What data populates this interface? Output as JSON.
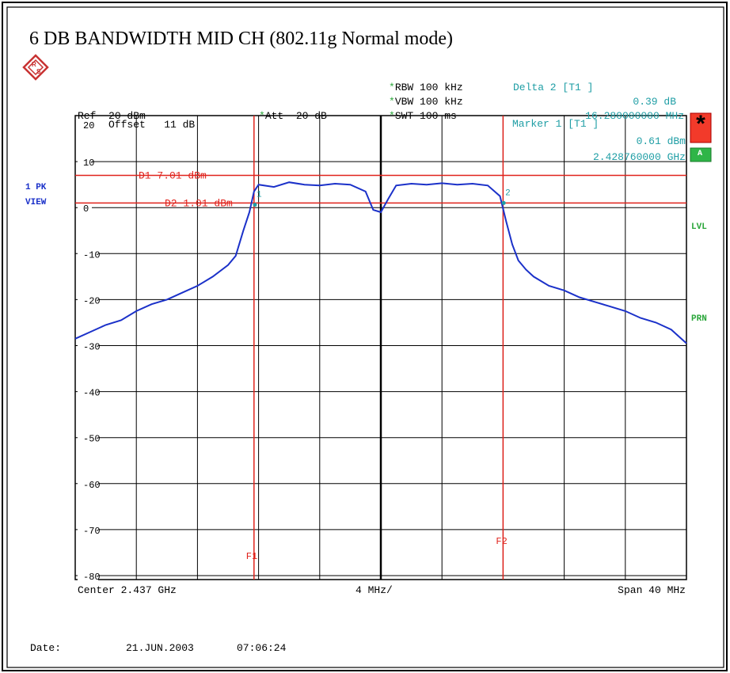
{
  "title": "6 DB BANDWIDTH MID CH (802.11g Normal mode)",
  "header": {
    "rbw_label": "RBW",
    "rbw_value": "100 kHz",
    "vbw_label": "VBW",
    "vbw_value": "100 kHz",
    "swt_label": "SWT",
    "swt_value": "100 ms",
    "ref_label": "Ref",
    "ref_value": "20 dBm",
    "att_label": "Att",
    "att_value": "20 dB",
    "star": "*",
    "delta_title": "Delta 2 [T1 ]",
    "delta_level": "0.39 dB",
    "delta_freq": "16.280000000 MHz"
  },
  "marker_box": {
    "title": "Marker 1 [T1 ]",
    "level": "0.61 dBm",
    "freq": "2.428760000 GHz"
  },
  "offset": {
    "label": "Offset",
    "value": "11 dB"
  },
  "side_left": {
    "trace_mode": "1 PK",
    "view": "VIEW"
  },
  "side_right": {
    "star_badge": "*",
    "a_badge": "A",
    "lvl": "LVL",
    "prn": "PRN"
  },
  "footer": {
    "center": "Center 2.437 GHz",
    "div": "4 MHz/",
    "span": "Span 40 MHz",
    "date_label": "Date:",
    "date_value": "21.JUN.2003",
    "time_value": "07:06:24"
  },
  "colors": {
    "trace": "#1b31c9",
    "lines": "#e0231c",
    "cyan": "#1f9ea5",
    "green": "#2aa63a"
  },
  "chart_data": {
    "type": "line",
    "xlim": [
      2.417,
      2.457
    ],
    "ylim": [
      -84,
      20
    ],
    "x_unit": "GHz",
    "y_unit": "dBm",
    "yticks": [
      20,
      10,
      0,
      -10,
      -20,
      -30,
      -40,
      -50,
      -60,
      -70,
      -80
    ],
    "ytick_labels": [
      "20",
      "10",
      "0",
      "-10",
      "-20",
      "-30",
      "-40",
      "-50",
      "-60",
      "-70",
      "-80"
    ],
    "grid": true,
    "display_lines": [
      {
        "name": "D1",
        "label": "D1 7.01 dBm",
        "value": 7.01
      },
      {
        "name": "D2",
        "label": "D2 1.01 dBm",
        "value": 1.01
      }
    ],
    "frequency_lines": [
      {
        "name": "F1",
        "label": "F1",
        "value": 2.4287
      },
      {
        "name": "F2",
        "label": "F2",
        "value": 2.445
      }
    ],
    "markers": [
      {
        "id": "1",
        "label": "1",
        "x": 2.42876,
        "y": 0.61
      },
      {
        "id": "2",
        "label": "2",
        "x": 2.44504,
        "y": 1.0
      }
    ],
    "series": [
      {
        "x": [
          2.417,
          2.418,
          2.419,
          2.42,
          2.421,
          2.422,
          2.423,
          2.424,
          2.425,
          2.426,
          2.427,
          2.4275,
          2.428,
          2.4284,
          2.4287,
          2.429,
          2.43,
          2.431,
          2.432,
          2.433,
          2.434,
          2.435,
          2.436,
          2.4365,
          2.437,
          2.4375,
          2.438,
          2.439,
          2.44,
          2.441,
          2.442,
          2.443,
          2.444,
          2.4448,
          2.4452,
          2.4456,
          2.446,
          2.4465,
          2.447,
          2.448,
          2.449,
          2.45,
          2.451,
          2.452,
          2.453,
          2.454,
          2.455,
          2.456,
          2.457
        ],
        "y": [
          -28.5,
          -27.0,
          -25.5,
          -24.5,
          -22.5,
          -21.0,
          -20.0,
          -18.5,
          -17.0,
          -15.0,
          -12.5,
          -10.5,
          -5.0,
          -1.0,
          3.5,
          5.0,
          4.5,
          5.5,
          5.0,
          4.8,
          5.2,
          5.0,
          3.5,
          -0.5,
          -1.0,
          2.0,
          4.8,
          5.2,
          5.0,
          5.3,
          5.0,
          5.2,
          4.8,
          2.5,
          -3.0,
          -8.0,
          -11.5,
          -13.5,
          -15.0,
          -17.0,
          -18.0,
          -19.5,
          -20.5,
          -21.5,
          -22.5,
          -24.0,
          -25.0,
          -26.5,
          -29.5
        ]
      }
    ]
  }
}
